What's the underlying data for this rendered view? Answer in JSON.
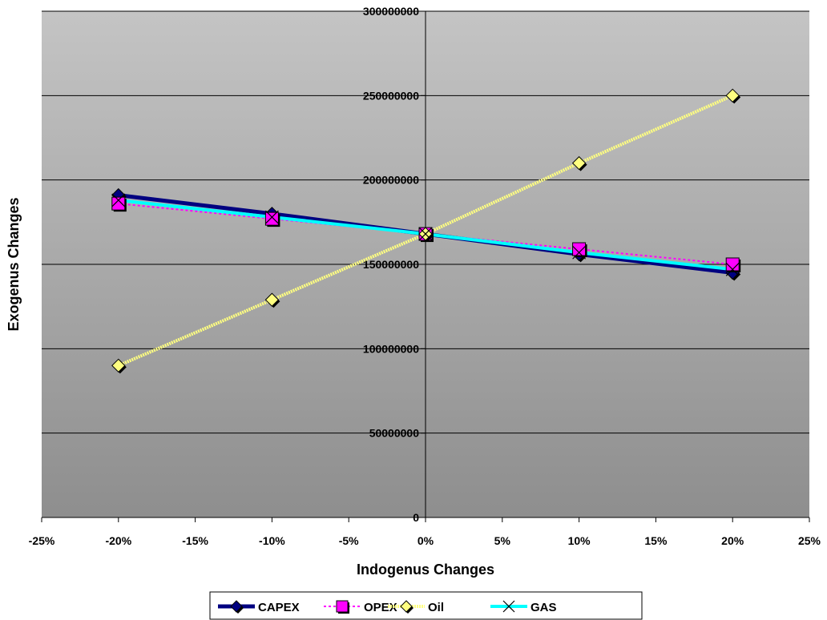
{
  "chart_data": {
    "type": "line",
    "title": "",
    "xlabel": "Indogenus Changes",
    "ylabel": "Exogenus Changes",
    "x": [
      -20,
      -10,
      0,
      10,
      20
    ],
    "xlim": [
      -25,
      25
    ],
    "x_ticks": [
      "-25%",
      "-20%",
      "-15%",
      "-10%",
      "-5%",
      "0%",
      "5%",
      "10%",
      "15%",
      "20%",
      "25%"
    ],
    "ylim": [
      0,
      300000000
    ],
    "y_ticks": [
      "0",
      "50000000",
      "100000000",
      "150000000",
      "200000000",
      "250000000",
      "300000000"
    ],
    "grid": true,
    "legend_position": "bottom",
    "series": [
      {
        "name": "CAPEX",
        "values": [
          191000000,
          180000000,
          168000000,
          156000000,
          145000000
        ],
        "color": "#000080",
        "marker": "diamond"
      },
      {
        "name": "OPEX",
        "values": [
          186000000,
          177000000,
          168000000,
          159000000,
          150000000
        ],
        "color": "#ff00ff",
        "marker": "square"
      },
      {
        "name": "Oil",
        "values": [
          90000000,
          129000000,
          168000000,
          210000000,
          250000000
        ],
        "color": "#ffff80",
        "marker": "diamond"
      },
      {
        "name": "GAS",
        "values": [
          188000000,
          178000000,
          168000000,
          157000000,
          147000000
        ],
        "color": "#00ffff",
        "marker": "x"
      }
    ]
  }
}
